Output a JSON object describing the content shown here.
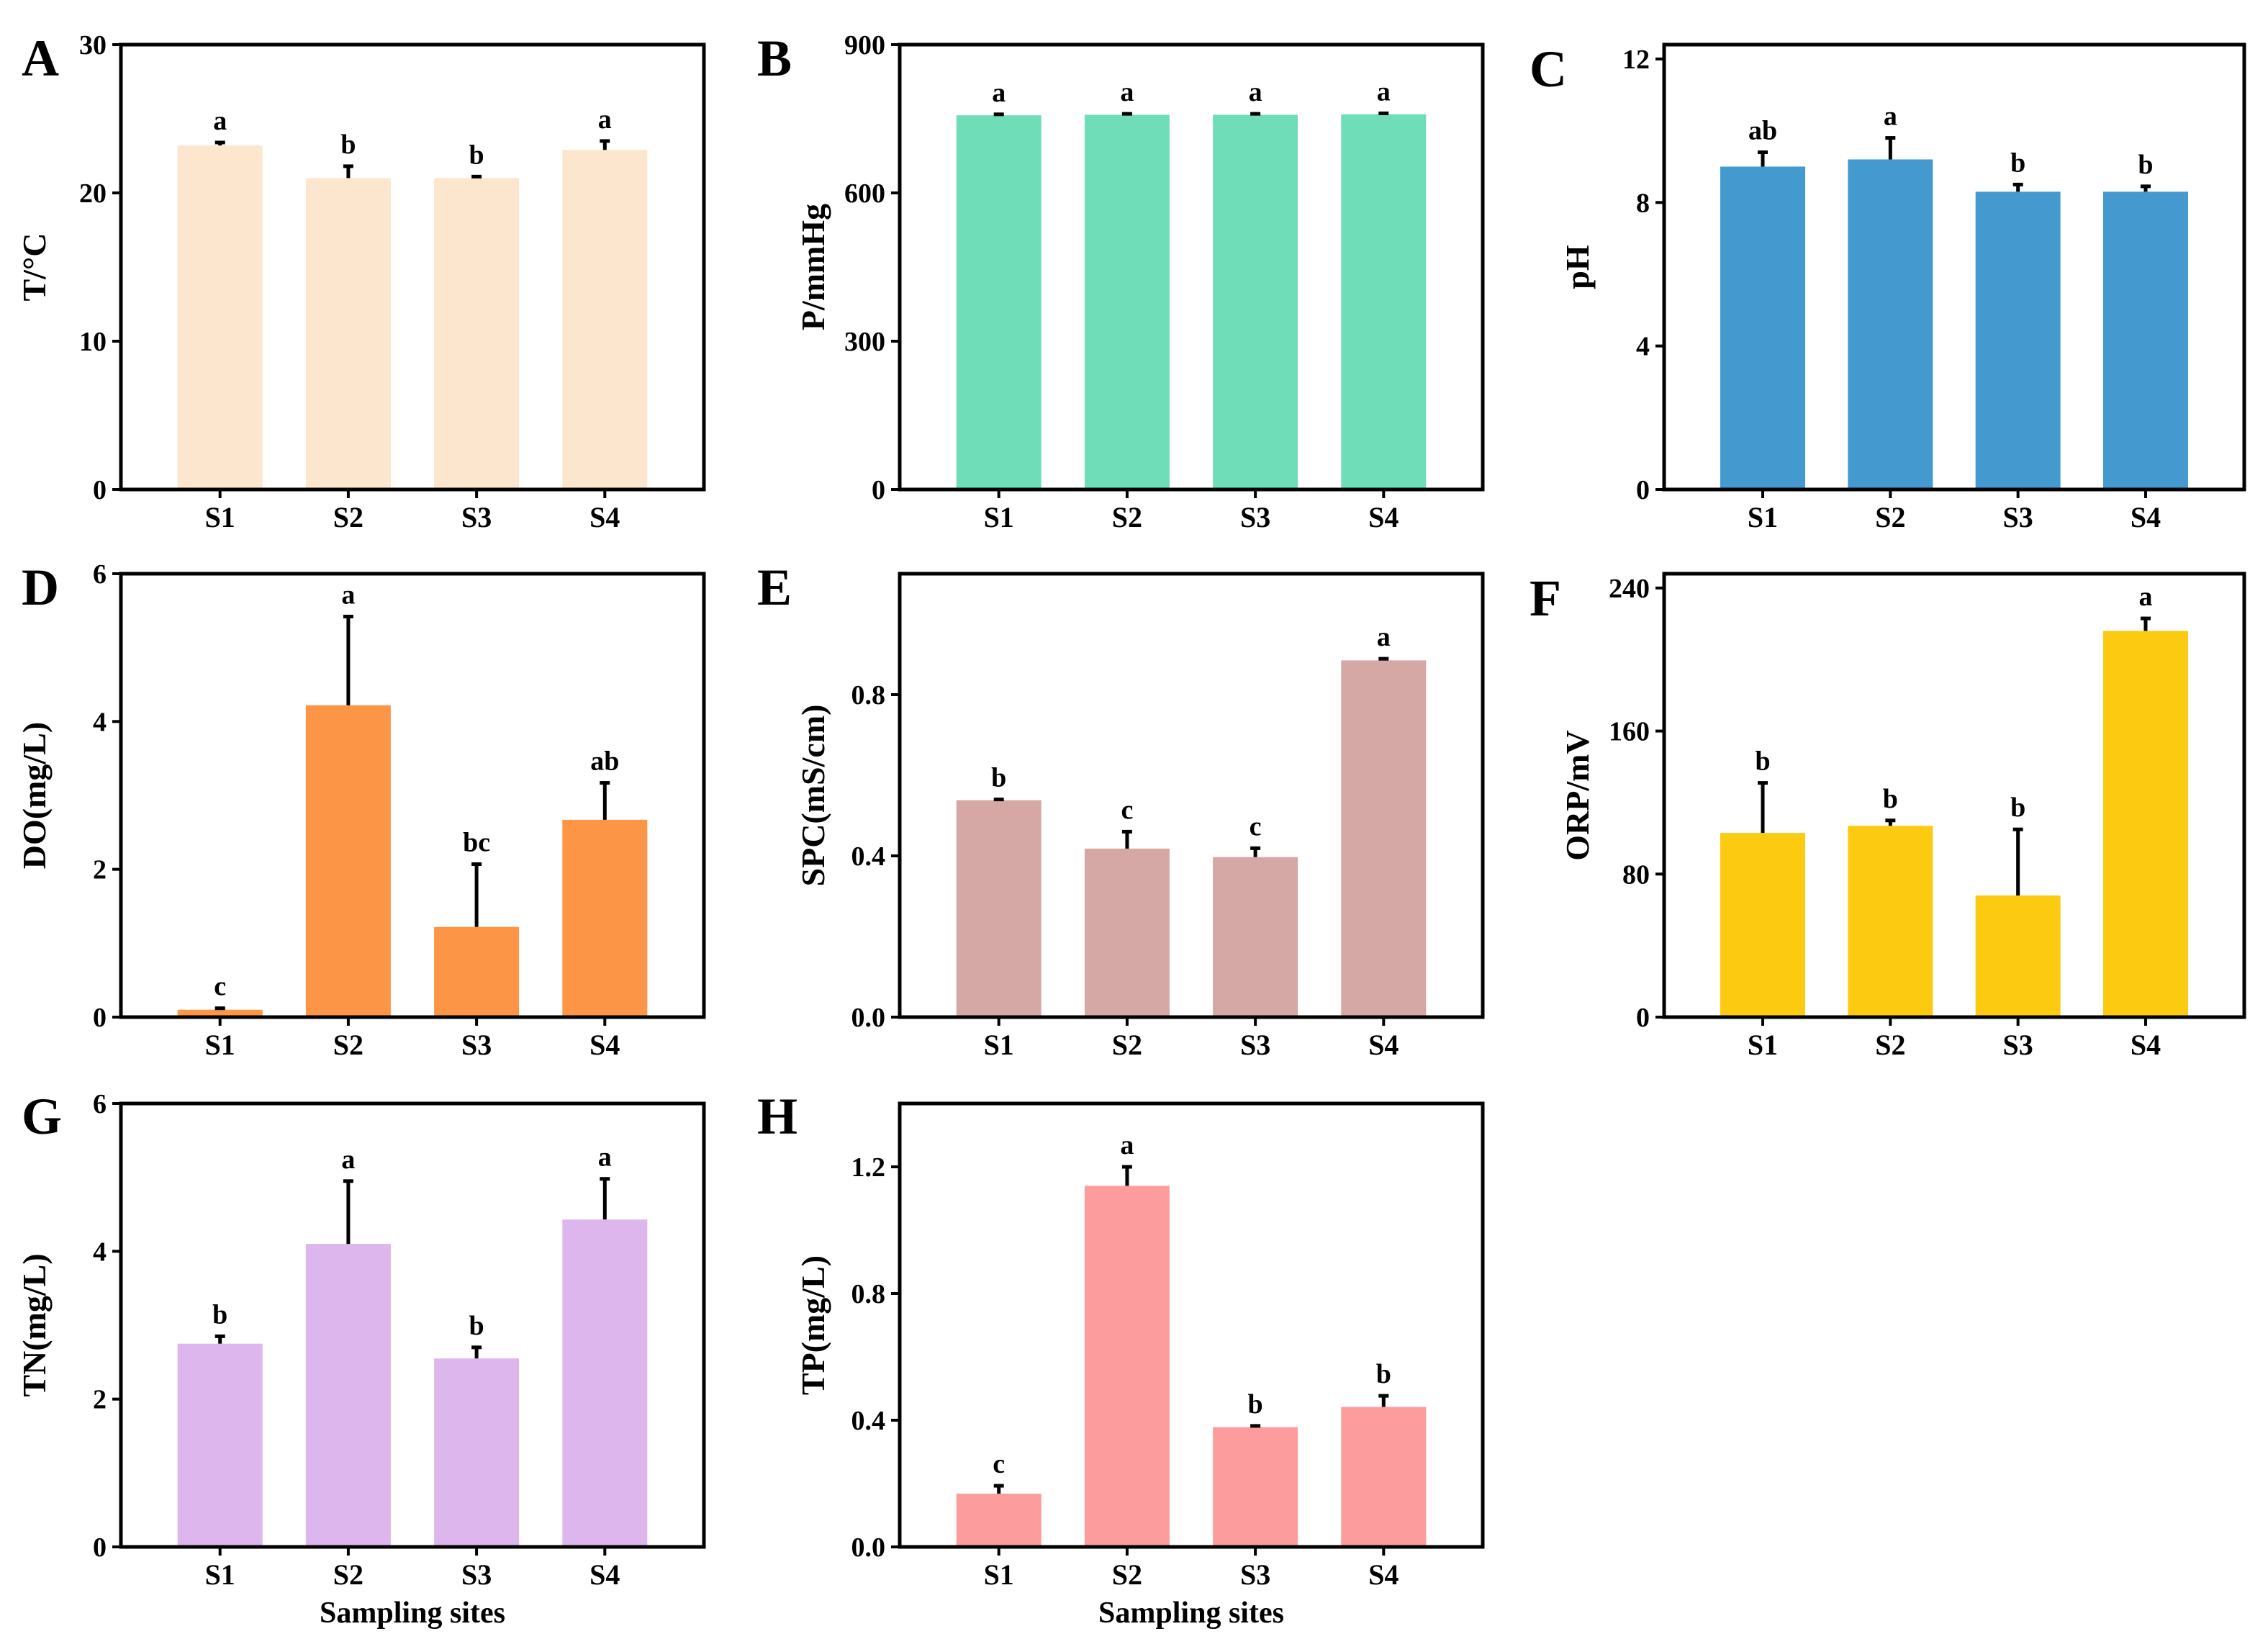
{
  "chart_data": [
    {
      "type": "bar",
      "panel": "A",
      "categories": [
        "S1",
        "S2",
        "S3",
        "S4"
      ],
      "values": [
        23.2,
        21.0,
        21.0,
        22.9
      ],
      "errors": [
        0.2,
        0.8,
        0.1,
        0.6
      ],
      "significance": [
        "a",
        "b",
        "b",
        "a"
      ],
      "ylabel": "T/°C",
      "xlabel": "",
      "ylim": [
        0,
        30
      ],
      "yticks": [
        0,
        10,
        20,
        30
      ],
      "color": "#FDE6CE"
    },
    {
      "type": "bar",
      "panel": "B",
      "categories": [
        "S1",
        "S2",
        "S3",
        "S4"
      ],
      "values": [
        757,
        758,
        758,
        759
      ],
      "errors": [
        2,
        2,
        2,
        2
      ],
      "significance": [
        "a",
        "a",
        "a",
        "a"
      ],
      "ylabel": "P/mmHg",
      "xlabel": "",
      "ylim": [
        0,
        900
      ],
      "yticks": [
        0,
        300,
        600,
        900
      ],
      "color": "#6EDDB8"
    },
    {
      "type": "bar",
      "panel": "C",
      "categories": [
        "S1",
        "S2",
        "S3",
        "S4"
      ],
      "values": [
        9.0,
        9.2,
        8.3,
        8.3
      ],
      "errors": [
        0.4,
        0.6,
        0.2,
        0.15
      ],
      "significance": [
        "ab",
        "a",
        "b",
        "b"
      ],
      "ylabel": "pH",
      "xlabel": "",
      "ylim": [
        0,
        12.4
      ],
      "yticks": [
        0,
        4,
        8,
        12
      ],
      "color": "#4499CF"
    },
    {
      "type": "bar",
      "panel": "D",
      "categories": [
        "S1",
        "S2",
        "S3",
        "S4"
      ],
      "values": [
        0.1,
        4.22,
        1.22,
        2.67
      ],
      "errors": [
        0.02,
        1.2,
        0.85,
        0.5
      ],
      "significance": [
        "c",
        "a",
        "bc",
        "ab"
      ],
      "ylabel": "DO(mg/L)",
      "xlabel": "",
      "ylim": [
        0,
        6
      ],
      "yticks": [
        0,
        2,
        4,
        6
      ],
      "color": "#FD9547"
    },
    {
      "type": "bar",
      "panel": "E",
      "categories": [
        "S1",
        "S2",
        "S3",
        "S4"
      ],
      "values": [
        0.538,
        0.418,
        0.397,
        0.885
      ],
      "errors": [
        0.002,
        0.042,
        0.022,
        0.004
      ],
      "significance": [
        "b",
        "c",
        "c",
        "a"
      ],
      "ylabel": "SPC(mS/cm)",
      "xlabel": "",
      "ylim": [
        0,
        1.1
      ],
      "yticks": [
        0.0,
        0.4,
        0.8
      ],
      "ytick_labels": [
        "0.0",
        "0.4",
        "0.8"
      ],
      "color": "#D5A8A6"
    },
    {
      "type": "bar",
      "panel": "F",
      "categories": [
        "S1",
        "S2",
        "S3",
        "S4"
      ],
      "values": [
        103,
        107,
        68,
        216
      ],
      "errors": [
        28,
        3,
        37,
        7
      ],
      "significance": [
        "b",
        "b",
        "b",
        "a"
      ],
      "ylabel": "ORP/mV",
      "xlabel": "",
      "ylim": [
        0,
        248
      ],
      "yticks": [
        0,
        80,
        160,
        240
      ],
      "color": "#FDCA12"
    },
    {
      "type": "bar",
      "panel": "G",
      "categories": [
        "S1",
        "S2",
        "S3",
        "S4"
      ],
      "values": [
        2.75,
        4.1,
        2.55,
        4.43
      ],
      "errors": [
        0.1,
        0.85,
        0.15,
        0.55
      ],
      "significance": [
        "b",
        "a",
        "b",
        "a"
      ],
      "ylabel": "TN(mg/L)",
      "xlabel": "Sampling sites",
      "ylim": [
        0,
        6
      ],
      "yticks": [
        0,
        2,
        4,
        6
      ],
      "color": "#DEB6EE"
    },
    {
      "type": "bar",
      "panel": "H",
      "categories": [
        "S1",
        "S2",
        "S3",
        "S4"
      ],
      "values": [
        0.168,
        1.14,
        0.378,
        0.442
      ],
      "errors": [
        0.025,
        0.06,
        0.004,
        0.035
      ],
      "significance": [
        "c",
        "a",
        "b",
        "b"
      ],
      "ylabel": "TP(mg/L)",
      "xlabel": "Sampling sites",
      "ylim": [
        0,
        1.4
      ],
      "yticks": [
        0.0,
        0.4,
        0.8,
        1.2
      ],
      "ytick_labels": [
        "0.0",
        "0.4",
        "0.8",
        "1.2"
      ],
      "color": "#FD9C9C"
    }
  ]
}
